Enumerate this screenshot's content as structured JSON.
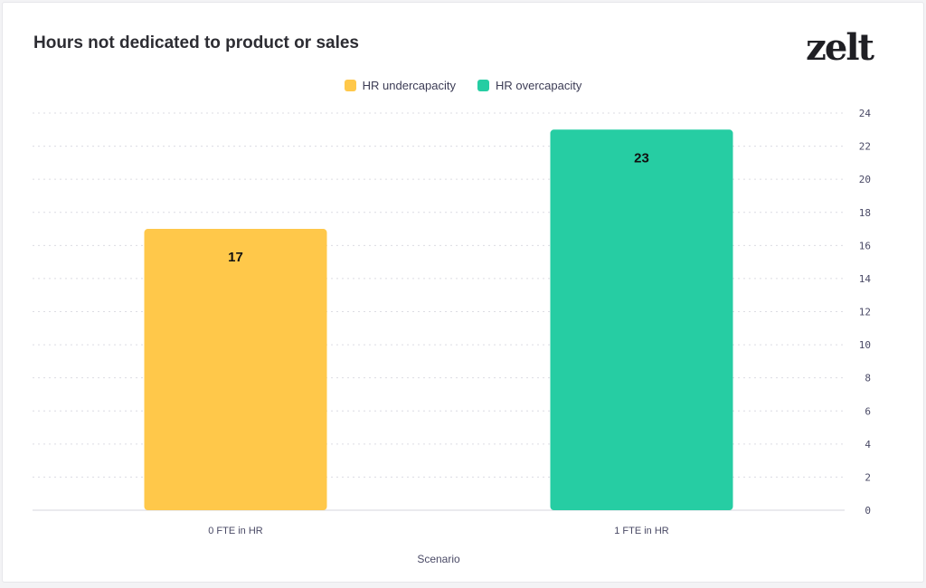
{
  "header": {
    "title": "Hours not dedicated to product or sales"
  },
  "brand": {
    "logo_text": "zelt"
  },
  "colors": {
    "undercapacity": "#ffc84a",
    "overcapacity": "#26cda3",
    "grid": "#dcdce3",
    "axis_line": "#e3e3e8"
  },
  "chart_data": {
    "type": "bar",
    "title": "Hours not dedicated to product or sales",
    "xlabel": "Scenario",
    "ylabel": "",
    "ylim": [
      0,
      24
    ],
    "yticks": [
      0,
      2,
      4,
      6,
      8,
      10,
      12,
      14,
      16,
      18,
      20,
      22,
      24
    ],
    "y_axis_position": "right",
    "grid": true,
    "legend_position": "top-center",
    "categories": [
      "0 FTE in HR",
      "1 FTE in HR"
    ],
    "values": [
      17,
      23
    ],
    "bar_series": [
      "undercapacity",
      "overcapacity"
    ],
    "series": [
      {
        "name": "HR undercapacity",
        "key": "undercapacity"
      },
      {
        "name": "HR overcapacity",
        "key": "overcapacity"
      }
    ]
  }
}
